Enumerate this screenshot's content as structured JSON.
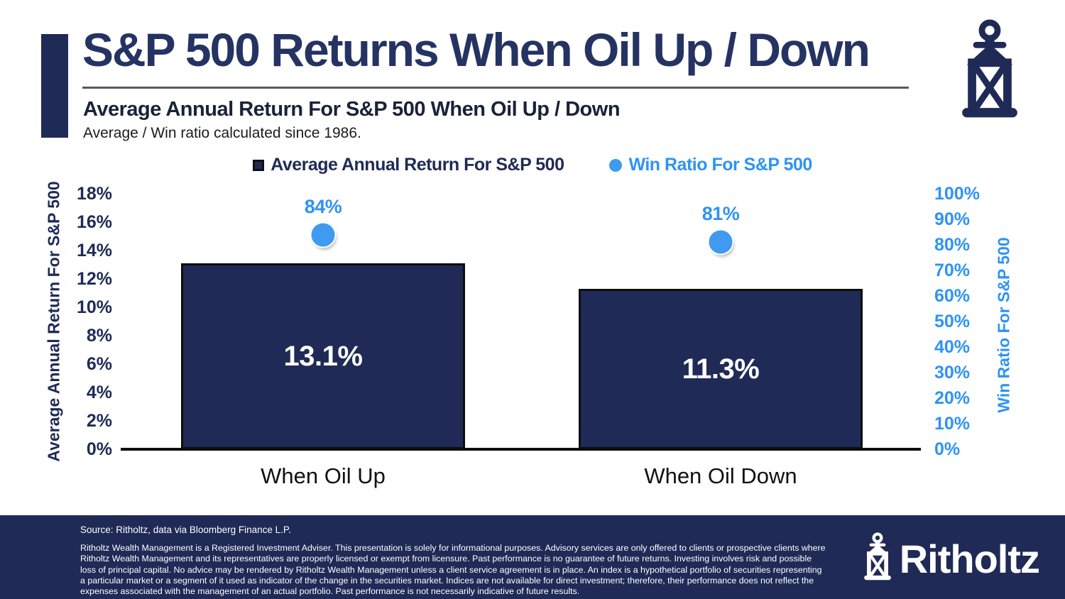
{
  "header": {
    "title": "S&P 500 Returns When Oil Up / Down",
    "subtitle": "Average Annual Return For S&P 500 When Oil Up / Down",
    "note": "Average / Win ratio calculated since 1986."
  },
  "legend": {
    "bar_series_label": "Average Annual Return For S&P 500",
    "dot_series_label": "Win Ratio For S&P 500"
  },
  "chart_data": {
    "type": "bar",
    "title": "Average Annual Return For S&P 500 When Oil Up / Down",
    "categories": [
      "When Oil Up",
      "When Oil Down"
    ],
    "series": [
      {
        "name": "Average Annual Return For S&P 500",
        "type": "bar",
        "axis": "left",
        "values": [
          13.1,
          11.3
        ],
        "labels": [
          "13.1%",
          "11.3%"
        ],
        "color": "#1F2A56"
      },
      {
        "name": "Win Ratio For S&P 500",
        "type": "scatter",
        "axis": "right",
        "values": [
          84,
          81
        ],
        "labels": [
          "84%",
          "81%"
        ],
        "color": "#3F9AF0"
      }
    ],
    "left_axis": {
      "label": "Average Annual Return For S&P 500",
      "min": 0,
      "max": 18,
      "tick_step": 2,
      "ticks": [
        "0%",
        "2%",
        "4%",
        "6%",
        "8%",
        "10%",
        "12%",
        "14%",
        "16%",
        "18%"
      ]
    },
    "right_axis": {
      "label": "Win Ratio For S&P 500",
      "min": 0,
      "max": 100,
      "tick_step": 10,
      "ticks": [
        "0%",
        "10%",
        "20%",
        "30%",
        "40%",
        "50%",
        "60%",
        "70%",
        "80%",
        "90%",
        "100%"
      ]
    },
    "grid": false,
    "legend_position": "top"
  },
  "footer": {
    "source": "Source: Ritholtz, data via Bloomberg Finance L.P.",
    "disclaimer": "Ritholtz Wealth Management is a Registered Investment Adviser. This presentation is solely for informational purposes. Advisory services are only offered to clients or prospective clients where Ritholtz Wealth Management and its representatives are properly licensed or exempt from licensure. Past performance is no guarantee of future returns. Investing involves risk and possible loss of principal capital. No advice may be rendered by Ritholtz Wealth Management unless a client service agreement is in place. An index is a hypothetical portfolio of securities representing a particular market or a segment of it used as indicator of the change in the securities market. Indices are not available for direct investment; therefore, their performance does not reflect the expenses associated with the management of an actual portfolio. Past performance is not necessarily indicative of future results.",
    "brand": "Ritholtz"
  },
  "colors": {
    "navy": "#1F2A56",
    "title_navy": "#253363",
    "blue": "#2E93F5",
    "dot_blue": "#3F9AF0",
    "rule_gray": "#58595B",
    "axis_black": "#0d0d0d"
  }
}
